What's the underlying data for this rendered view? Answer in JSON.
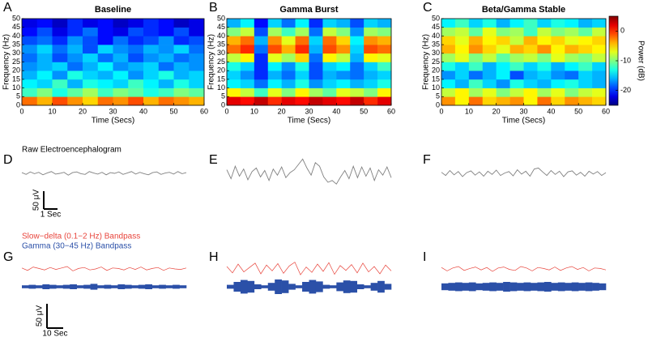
{
  "chart_data": [
    {
      "type": "heatmap",
      "panel": "A",
      "title": "Baseline",
      "xlabel": "Time (Secs)",
      "ylabel": "Frequency (Hz)",
      "xbins": [
        0,
        5,
        10,
        15,
        20,
        25,
        30,
        35,
        40,
        45,
        50,
        55,
        60
      ],
      "ybins": [
        0,
        5,
        10,
        15,
        20,
        25,
        30,
        35,
        40,
        45,
        50
      ],
      "xlim": [
        0,
        60
      ],
      "ylim": [
        0,
        50
      ],
      "xticks": [
        0,
        10,
        20,
        30,
        40,
        50,
        60
      ],
      "yticks": [
        0,
        5,
        10,
        15,
        20,
        25,
        30,
        35,
        40,
        45,
        50
      ],
      "values": [
        [
          -2,
          -4,
          -1,
          -3,
          -5,
          -2,
          -3,
          -1,
          -4,
          -2,
          -3,
          -4
        ],
        [
          -12,
          -10,
          -13,
          -11,
          -9,
          -12,
          -10,
          -11,
          -13,
          -12,
          -10,
          -11
        ],
        [
          -14,
          -15,
          -12,
          -16,
          -13,
          -14,
          -15,
          -12,
          -14,
          -16,
          -13,
          -15
        ],
        [
          -16,
          -14,
          -17,
          -13,
          -15,
          -16,
          -14,
          -17,
          -15,
          -13,
          -16,
          -15
        ],
        [
          -17,
          -16,
          -15,
          -18,
          -16,
          -14,
          -17,
          -16,
          -15,
          -18,
          -16,
          -17
        ],
        [
          -18,
          -16,
          -19,
          -17,
          -15,
          -18,
          -16,
          -19,
          -17,
          -16,
          -18,
          -17
        ],
        [
          -17,
          -15,
          -18,
          -16,
          -19,
          -15,
          -17,
          -18,
          -16,
          -17,
          -15,
          -18
        ],
        [
          -19,
          -18,
          -20,
          -17,
          -19,
          -21,
          -18,
          -20,
          -19,
          -17,
          -20,
          -19
        ],
        [
          -21,
          -19,
          -22,
          -20,
          -18,
          -21,
          -22,
          -19,
          -20,
          -21,
          -19,
          -22
        ],
        [
          -22,
          -21,
          -23,
          -20,
          -22,
          -21,
          -23,
          -22,
          -20,
          -21,
          -23,
          -22
        ]
      ]
    },
    {
      "type": "heatmap",
      "panel": "B",
      "title": "Gamma Burst",
      "xlabel": "Time (Secs)",
      "ylabel": "Frequency (Hz)",
      "xbins": [
        0,
        5,
        10,
        15,
        20,
        25,
        30,
        35,
        40,
        45,
        50,
        55,
        60
      ],
      "ybins": [
        0,
        5,
        10,
        15,
        20,
        25,
        30,
        35,
        40,
        45,
        50
      ],
      "xlim": [
        0,
        60
      ],
      "ylim": [
        0,
        50
      ],
      "xticks": [
        0,
        10,
        20,
        30,
        40,
        50,
        60
      ],
      "yticks": [
        0,
        5,
        10,
        15,
        20,
        25,
        30,
        35,
        40,
        45,
        50
      ],
      "values": [
        [
          2,
          1,
          3,
          0,
          2,
          1,
          3,
          2,
          1,
          3,
          0,
          2
        ],
        [
          -6,
          -8,
          -12,
          -7,
          -10,
          -6,
          -9,
          -11,
          -7,
          -8,
          -10,
          -6
        ],
        [
          -14,
          -15,
          -18,
          -14,
          -16,
          -13,
          -17,
          -15,
          -14,
          -16,
          -15,
          -13
        ],
        [
          -15,
          -17,
          -20,
          -16,
          -18,
          -15,
          -19,
          -16,
          -17,
          -18,
          -16,
          -15
        ],
        [
          -13,
          -15,
          -20,
          -14,
          -17,
          -13,
          -19,
          -15,
          -14,
          -18,
          -15,
          -12
        ],
        [
          -8,
          -6,
          -20,
          -7,
          -9,
          -5,
          -18,
          -6,
          -8,
          -16,
          -6,
          -7
        ],
        [
          -2,
          0,
          -18,
          -1,
          -4,
          0,
          -16,
          -1,
          -3,
          -15,
          -1,
          -2
        ],
        [
          -4,
          -2,
          -16,
          -3,
          -7,
          -2,
          -15,
          -2,
          -5,
          -14,
          -3,
          -4
        ],
        [
          -10,
          -8,
          -19,
          -9,
          -12,
          -9,
          -18,
          -8,
          -10,
          -17,
          -9,
          -10
        ],
        [
          -16,
          -14,
          -21,
          -15,
          -18,
          -14,
          -20,
          -15,
          -16,
          -19,
          -15,
          -16
        ]
      ]
    },
    {
      "type": "heatmap",
      "panel": "C",
      "title": "Beta/Gamma Stable",
      "xlabel": "Time (Secs)",
      "ylabel": "Frequency (Hz)",
      "xbins": [
        0,
        5,
        10,
        15,
        20,
        25,
        30,
        35,
        40,
        45,
        50,
        55,
        60
      ],
      "ybins": [
        0,
        5,
        10,
        15,
        20,
        25,
        30,
        35,
        40,
        45,
        50
      ],
      "xlim": [
        0,
        60
      ],
      "ylim": [
        0,
        50
      ],
      "xticks": [
        0,
        10,
        20,
        30,
        40,
        50,
        60
      ],
      "yticks": [
        0,
        5,
        10,
        15,
        20,
        25,
        30,
        35,
        40,
        45,
        50
      ],
      "values": [
        [
          -3,
          -6,
          -2,
          -5,
          -4,
          -3,
          -6,
          -2,
          -5,
          -3,
          -4,
          -5
        ],
        [
          -8,
          -6,
          -9,
          -7,
          -10,
          -8,
          -6,
          -9,
          -7,
          -10,
          -8,
          -7
        ],
        [
          -14,
          -16,
          -12,
          -15,
          -17,
          -13,
          -15,
          -16,
          -14,
          -13,
          -15,
          -16
        ],
        [
          -17,
          -15,
          -18,
          -16,
          -14,
          -19,
          -16,
          -15,
          -17,
          -18,
          -15,
          -16
        ],
        [
          -13,
          -15,
          -12,
          -16,
          -14,
          -12,
          -15,
          -13,
          -16,
          -14,
          -12,
          -15
        ],
        [
          -9,
          -7,
          -10,
          -8,
          -11,
          -9,
          -8,
          -10,
          -7,
          -9,
          -10,
          -8
        ],
        [
          -4,
          -6,
          -3,
          -5,
          -7,
          -4,
          -5,
          -3,
          -6,
          -4,
          -5,
          -6
        ],
        [
          -5,
          -7,
          -4,
          -6,
          -5,
          -8,
          -4,
          -6,
          -5,
          -7,
          -6,
          -5
        ],
        [
          -9,
          -8,
          -11,
          -7,
          -10,
          -9,
          -12,
          -8,
          -10,
          -9,
          -11,
          -8
        ],
        [
          -14,
          -12,
          -15,
          -13,
          -16,
          -14,
          -12,
          -15,
          -13,
          -14,
          -16,
          -15
        ]
      ],
      "colorbar": {
        "lim": [
          -25,
          5
        ],
        "ticks": [
          0,
          -10,
          -20
        ],
        "label": "Power (dB)"
      }
    },
    {
      "type": "line",
      "panel": "D",
      "title": "Raw Electroencephalogram",
      "color": "#808080",
      "scalebar": {
        "y": 50,
        "y_label": "50 μV",
        "x": 1,
        "x_label": "1 Sec"
      },
      "values": [
        2,
        -3,
        4,
        -1,
        3,
        -4,
        1,
        5,
        -2,
        0,
        3,
        -5,
        2,
        4,
        -1,
        -3,
        5,
        1,
        -2,
        3,
        -4,
        2,
        0,
        4,
        -3,
        1,
        5,
        -2,
        3,
        -1,
        -4,
        2,
        4,
        -3,
        1,
        3,
        -2,
        5,
        -1,
        2
      ]
    },
    {
      "type": "line",
      "panel": "E",
      "color": "#808080",
      "values": [
        10,
        -15,
        20,
        -8,
        12,
        -18,
        5,
        15,
        -10,
        8,
        -20,
        12,
        -5,
        18,
        -12,
        2,
        10,
        25,
        40,
        15,
        -5,
        30,
        20,
        -10,
        -25,
        -20,
        -30,
        -10,
        8,
        -15,
        20,
        -12,
        18,
        -8,
        15,
        -20,
        10,
        -5,
        18,
        -12
      ]
    },
    {
      "type": "line",
      "panel": "F",
      "color": "#808080",
      "values": [
        3,
        -6,
        8,
        -4,
        5,
        -9,
        2,
        7,
        -5,
        4,
        -8,
        6,
        -3,
        9,
        -6,
        1,
        5,
        -7,
        10,
        -2,
        6,
        -8,
        12,
        15,
        4,
        -6,
        8,
        -3,
        6,
        -9,
        4,
        7,
        -5,
        3,
        -8,
        6,
        -2,
        5,
        -6,
        2
      ]
    },
    {
      "type": "bandpass",
      "panel": "G",
      "scalebar": {
        "y": 50,
        "y_label": "50 μV",
        "x": 10,
        "x_label": "10 Sec"
      },
      "series": [
        {
          "name": "Slow−delta (0.1−2 Hz) Bandpass",
          "color": "#e8453c",
          "values": [
            2,
            -3,
            4,
            1,
            -2,
            3,
            -1,
            2,
            5,
            -4,
            1,
            3,
            -2,
            0,
            4,
            -3,
            2,
            1,
            -2,
            3,
            -1,
            4,
            -2,
            1,
            3,
            -3,
            2,
            0,
            -1,
            2
          ]
        },
        {
          "name": "Gamma (30−45 Hz) Bandpass",
          "color": "#2b50a8",
          "style": "envelope",
          "values": [
            3,
            4,
            3,
            5,
            4,
            3,
            4,
            5,
            3,
            4,
            6,
            3,
            4,
            3,
            5,
            4,
            3,
            4,
            5,
            3,
            4,
            3,
            4,
            3
          ]
        }
      ]
    },
    {
      "type": "bandpass",
      "panel": "H",
      "series": [
        {
          "color": "#e8453c",
          "values": [
            5,
            -8,
            10,
            -6,
            3,
            12,
            -10,
            8,
            -4,
            11,
            -9,
            6,
            14,
            -12,
            4,
            -7,
            10,
            -5,
            13,
            -11,
            7,
            -3,
            9,
            -8,
            12,
            -6,
            5,
            -10,
            8,
            -4
          ]
        },
        {
          "color": "#2b50a8",
          "style": "envelope",
          "values": [
            4,
            10,
            14,
            12,
            5,
            3,
            8,
            15,
            13,
            6,
            3,
            10,
            14,
            11,
            4,
            3,
            9,
            13,
            12,
            5,
            3,
            8,
            12,
            6
          ]
        }
      ]
    },
    {
      "type": "bandpass",
      "panel": "I",
      "series": [
        {
          "color": "#e8453c",
          "values": [
            3,
            -4,
            2,
            5,
            -3,
            1,
            4,
            -2,
            3,
            -5,
            2,
            4,
            -1,
            -3,
            5,
            2,
            -4,
            3,
            1,
            -2,
            4,
            -3,
            2,
            5,
            -1,
            3,
            -4,
            2,
            1,
            -2
          ]
        },
        {
          "color": "#2b50a8",
          "style": "envelope",
          "values": [
            7,
            8,
            9,
            8,
            9,
            7,
            8,
            9,
            8,
            10,
            9,
            8,
            9,
            8,
            9,
            10,
            8,
            9,
            8,
            9,
            8,
            9,
            8,
            7
          ]
        }
      ]
    }
  ]
}
